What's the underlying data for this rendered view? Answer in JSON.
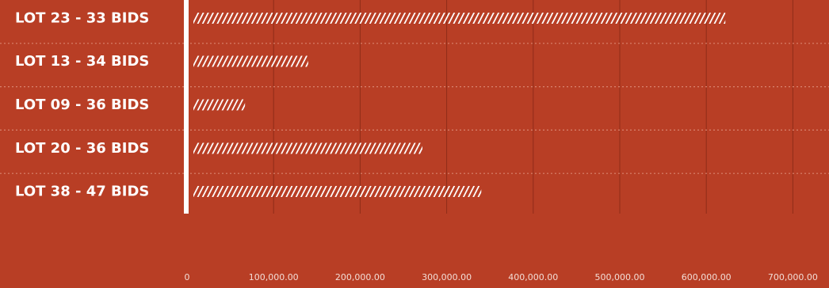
{
  "chart_data": {
    "type": "bar",
    "orientation": "horizontal",
    "categories": [
      "LOT 23 - 33 BIDS",
      "LOT 13 - 34 BIDS",
      "LOT 09 - 36 BIDS",
      "LOT 20 - 36 BIDS",
      "LOT 38 - 47 BIDS"
    ],
    "values": [
      622000,
      140000,
      67000,
      272000,
      340000
    ],
    "x_ticks": [
      "0",
      "100,000.00",
      "200,000.00",
      "300,000.00",
      "400,000.00",
      "500,000.00",
      "600,000.00",
      "700,000.00"
    ],
    "xlim": [
      0,
      700000
    ],
    "grid": true,
    "legend": "none",
    "title": "",
    "xlabel": "",
    "ylabel": ""
  },
  "colors": {
    "background": "#b83e25",
    "bar_marks": "#ffffff",
    "axis_line": "#ffffff",
    "gridline": "#8f2c18",
    "row_separator": "#d9836f",
    "label_text": "#ffffff",
    "tick_text": "#f3ddd6"
  }
}
